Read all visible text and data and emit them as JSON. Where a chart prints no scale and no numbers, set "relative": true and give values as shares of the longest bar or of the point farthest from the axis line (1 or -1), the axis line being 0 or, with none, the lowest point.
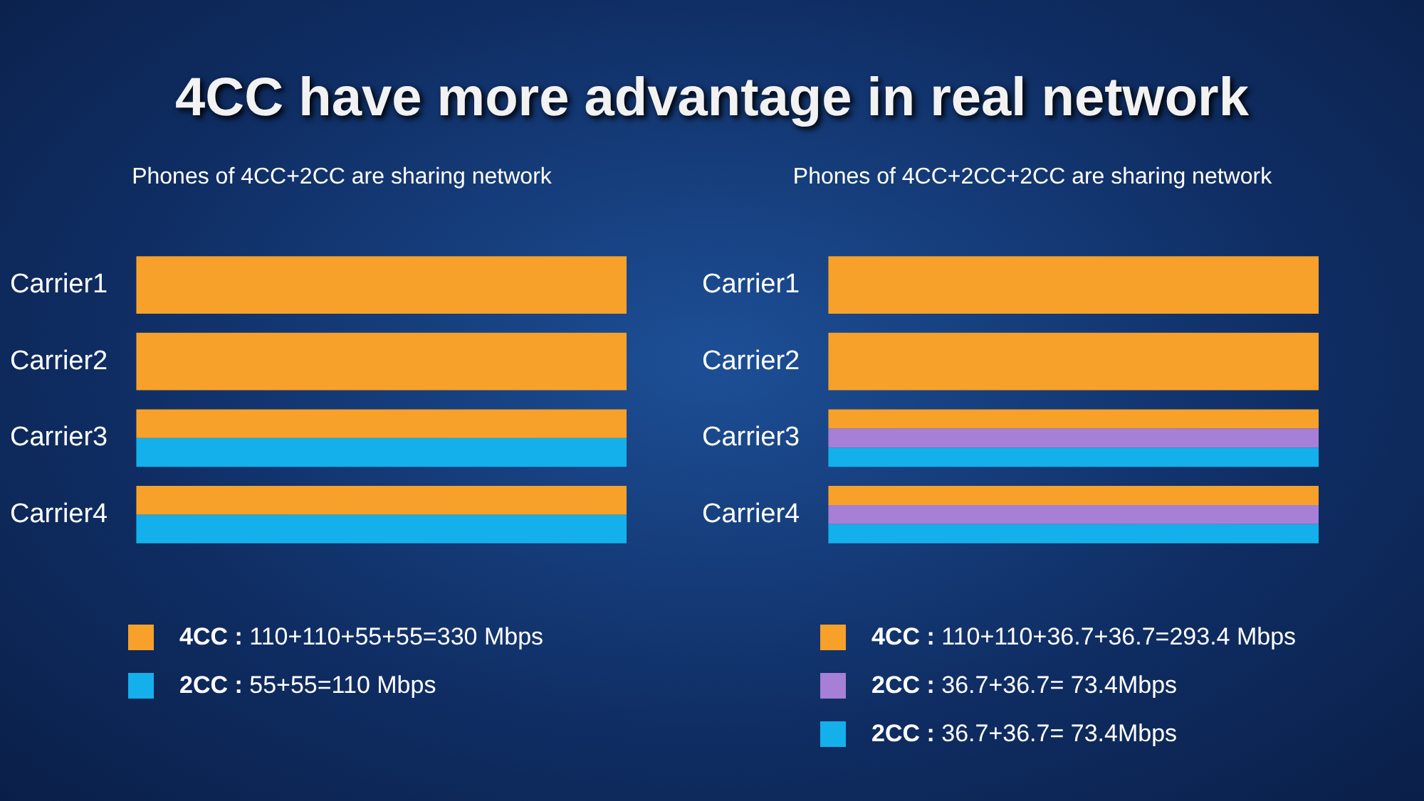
{
  "chart_data": [
    {
      "type": "bar",
      "orientation": "horizontal",
      "relative": true,
      "title": "4CC have more advantage in real network",
      "subtitle": "Phones of 4CC+2CC are sharing network",
      "categories": [
        "Carrier1",
        "Carrier2",
        "Carrier3",
        "Carrier4"
      ],
      "legend": "bottom",
      "grid": false,
      "tick_labels": "y",
      "series": [
        {
          "name": "4CC : 110+110+55+55=330 Mbps",
          "color": "#f7a12a",
          "values": [
            1,
            1,
            1,
            1
          ]
        },
        {
          "name": "2CC : 55+55=110 Mbps",
          "color": "#14b0ec",
          "values": [
            null,
            null,
            1,
            1
          ]
        }
      ]
    },
    {
      "type": "bar",
      "orientation": "horizontal",
      "relative": true,
      "subtitle": "Phones of 4CC+2CC+2CC are sharing network",
      "categories": [
        "Carrier1",
        "Carrier2",
        "Carrier3",
        "Carrier4"
      ],
      "legend": "bottom",
      "grid": false,
      "tick_labels": "y",
      "series": [
        {
          "name": "4CC : 110+110+36.7+36.7=293.4 Mbps",
          "color": "#f7a12a",
          "values": [
            1,
            1,
            1,
            1
          ]
        },
        {
          "name": "2CC : 36.7+36.7= 73.4Mbps",
          "color": "#a67fd6",
          "values": [
            null,
            null,
            1,
            1
          ]
        },
        {
          "name": "2CC : 36.7+36.7= 73.4Mbps",
          "color": "#14b0ec",
          "values": [
            null,
            null,
            1,
            1
          ]
        }
      ]
    }
  ]
}
